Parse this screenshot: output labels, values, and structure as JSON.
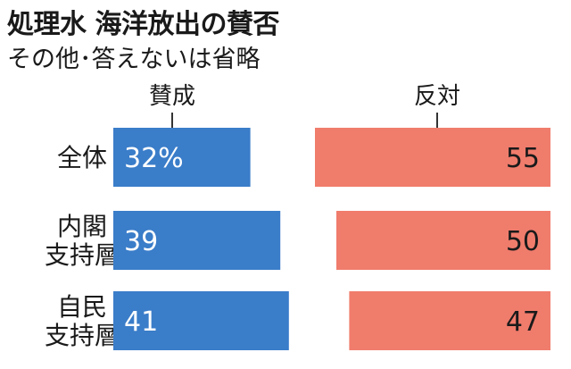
{
  "title": "処理水 海洋放出の賛否",
  "subtitle": "その他･答えないは省略",
  "chart_data": {
    "type": "bar",
    "categories": [
      [
        "全体"
      ],
      [
        "内閣",
        "支持層"
      ],
      [
        "自民",
        "支持層"
      ]
    ],
    "series": [
      {
        "name": "賛成",
        "values": [
          32,
          39,
          41
        ],
        "labels": [
          "32%",
          "39",
          "41"
        ],
        "color": "#3a7dc9",
        "label_color": "#ffffff"
      },
      {
        "name": "反対",
        "values": [
          55,
          50,
          47
        ],
        "labels": [
          "55",
          "50",
          "47"
        ],
        "color": "#f07c6c",
        "label_color": "#1a1a1a"
      }
    ],
    "xlim": [
      0,
      100
    ],
    "grid": false,
    "legend": "none"
  }
}
